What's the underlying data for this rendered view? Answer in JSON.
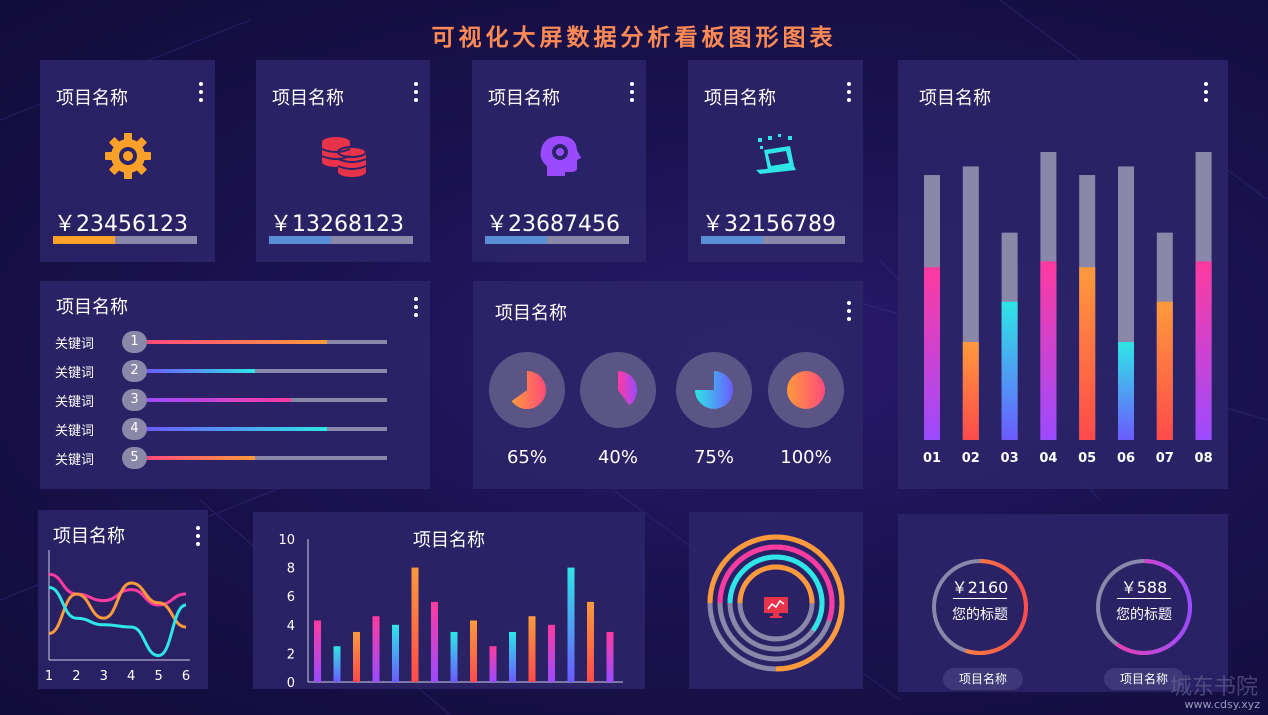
{
  "header": {
    "title": "可视化大屏数据分析看板图形图表"
  },
  "colors": {
    "orange": "#ff9a3c",
    "pink": "#ff3aa0",
    "cyan": "#2ee6e6",
    "blue": "#6b5bff",
    "purple": "#9b4bff",
    "gray": "#8b87a8",
    "red": "#e8334a"
  },
  "kpis": [
    {
      "title": "项目名称",
      "amount": "￥23456123",
      "icon": "gear-icon",
      "progress": 0.43,
      "color": "#ffa028"
    },
    {
      "title": "项目名称",
      "amount": "￥13268123",
      "icon": "coins-icon",
      "progress": 0.43,
      "color": "#5a8fd6"
    },
    {
      "title": "项目名称",
      "amount": "￥23687456",
      "icon": "brain-gear-icon",
      "progress": 0.43,
      "color": "#5a8fd6"
    },
    {
      "title": "项目名称",
      "amount": "￥32156789",
      "icon": "laptop-icon",
      "progress": 0.43,
      "color": "#5a8fd6"
    }
  ],
  "keywords": {
    "title": "项目名称",
    "items": [
      {
        "label": "关键词",
        "num": "1",
        "value": 0.75,
        "from": "#ff4a7a",
        "to": "#ff9a3c"
      },
      {
        "label": "关键词",
        "num": "2",
        "value": 0.45,
        "from": "#6b5bff",
        "to": "#2ee6e6"
      },
      {
        "label": "关键词",
        "num": "3",
        "value": 0.6,
        "from": "#9b4bff",
        "to": "#ff3aa0"
      },
      {
        "label": "关键词",
        "num": "4",
        "value": 0.75,
        "from": "#6b5bff",
        "to": "#2ee6e6"
      },
      {
        "label": "关键词",
        "num": "5",
        "value": 0.45,
        "from": "#ff4a7a",
        "to": "#ff9a3c"
      }
    ]
  },
  "pies": {
    "title": "项目名称",
    "items": [
      {
        "label": "65%",
        "value": 65,
        "from": "#ff9a3c",
        "to": "#ff4a7a"
      },
      {
        "label": "40%",
        "value": 40,
        "from": "#ff3aa0",
        "to": "#9b4bff"
      },
      {
        "label": "75%",
        "value": 75,
        "from": "#2ee6e6",
        "to": "#6b5bff"
      },
      {
        "label": "100%",
        "value": 100,
        "from": "#ff9a3c",
        "to": "#ff4a7a"
      }
    ]
  },
  "chart_data": [
    {
      "type": "bar",
      "title": "项目名称",
      "categories": [
        "01",
        "02",
        "03",
        "04",
        "05",
        "06",
        "07",
        "08"
      ],
      "totals": [
        92,
        95,
        72,
        100,
        92,
        95,
        72,
        100
      ],
      "values": [
        60,
        34,
        48,
        62,
        60,
        34,
        48,
        62
      ],
      "colors": [
        [
          "#ff3aa0",
          "#9b4bff"
        ],
        [
          "#ff9a3c",
          "#ff4a4a"
        ],
        [
          "#2ee6e6",
          "#6b5bff"
        ],
        [
          "#ff3aa0",
          "#9b4bff"
        ],
        [
          "#ff9a3c",
          "#ff4a4a"
        ],
        [
          "#2ee6e6",
          "#6b5bff"
        ],
        [
          "#ff9a3c",
          "#ff4a4a"
        ],
        [
          "#ff3aa0",
          "#9b4bff"
        ]
      ]
    },
    {
      "type": "line",
      "title": "项目名称",
      "x": [
        1,
        2,
        3,
        4,
        5,
        6
      ],
      "ylim": [
        0,
        5
      ],
      "series": [
        {
          "color": "#ff3aa0",
          "values": [
            3.9,
            3.0,
            2.7,
            3.2,
            2.5,
            3.0
          ]
        },
        {
          "color": "#ff9a3c",
          "values": [
            1.2,
            3.0,
            1.9,
            3.5,
            2.6,
            1.5
          ]
        },
        {
          "color": "#2ee6e6",
          "values": [
            3.3,
            1.9,
            1.6,
            1.5,
            0.2,
            2.5
          ]
        }
      ]
    },
    {
      "type": "bar",
      "title": "项目名称",
      "ylim": [
        0,
        10
      ],
      "yticks": [
        "0",
        "2",
        "4",
        "6",
        "8",
        "10"
      ],
      "values": [
        4.3,
        2.5,
        3.5,
        4.6,
        4.0,
        8.0,
        5.6,
        3.5,
        4.3,
        2.5,
        3.5,
        4.6,
        4.0,
        8.0,
        5.6,
        3.5
      ],
      "colors": [
        [
          "#ff3aa0",
          "#9b4bff"
        ],
        [
          "#2ee6e6",
          "#6b5bff"
        ],
        [
          "#ff9a3c",
          "#ff4a4a"
        ],
        [
          "#ff3aa0",
          "#9b4bff"
        ],
        [
          "#2ee6e6",
          "#6b5bff"
        ],
        [
          "#ff9a3c",
          "#ff4a4a"
        ],
        [
          "#ff3aa0",
          "#9b4bff"
        ],
        [
          "#2ee6e6",
          "#6b5bff"
        ],
        [
          "#ff9a3c",
          "#ff4a4a"
        ],
        [
          "#ff3aa0",
          "#9b4bff"
        ],
        [
          "#2ee6e6",
          "#6b5bff"
        ],
        [
          "#ff9a3c",
          "#ff4a4a"
        ],
        [
          "#ff3aa0",
          "#9b4bff"
        ],
        [
          "#2ee6e6",
          "#6b5bff"
        ],
        [
          "#ff9a3c",
          "#ff4a4a"
        ],
        [
          "#ff3aa0",
          "#9b4bff"
        ]
      ]
    },
    {
      "type": "pie",
      "rings": [
        {
          "value": 0.75,
          "color": "#ff9a3c"
        },
        {
          "value": 0.55,
          "color": "#ff3aa0"
        },
        {
          "value": 0.6,
          "color": "#2ee6e6"
        },
        {
          "value": 0.5,
          "color": "#ff9a3c"
        }
      ]
    }
  ],
  "rings": [
    {
      "amount": "￥2160",
      "caption": "您的标题",
      "pill": "项目名称",
      "value": 0.55,
      "from": "#ff9a3c",
      "to": "#ff4a4a"
    },
    {
      "amount": "￥588",
      "caption": "您的标题",
      "pill": "项目名称",
      "value": 0.6,
      "from": "#ff3aa0",
      "to": "#9b4bff"
    }
  ],
  "watermark": {
    "cn": "城东书院",
    "url": "www.cdsy.xyz"
  }
}
